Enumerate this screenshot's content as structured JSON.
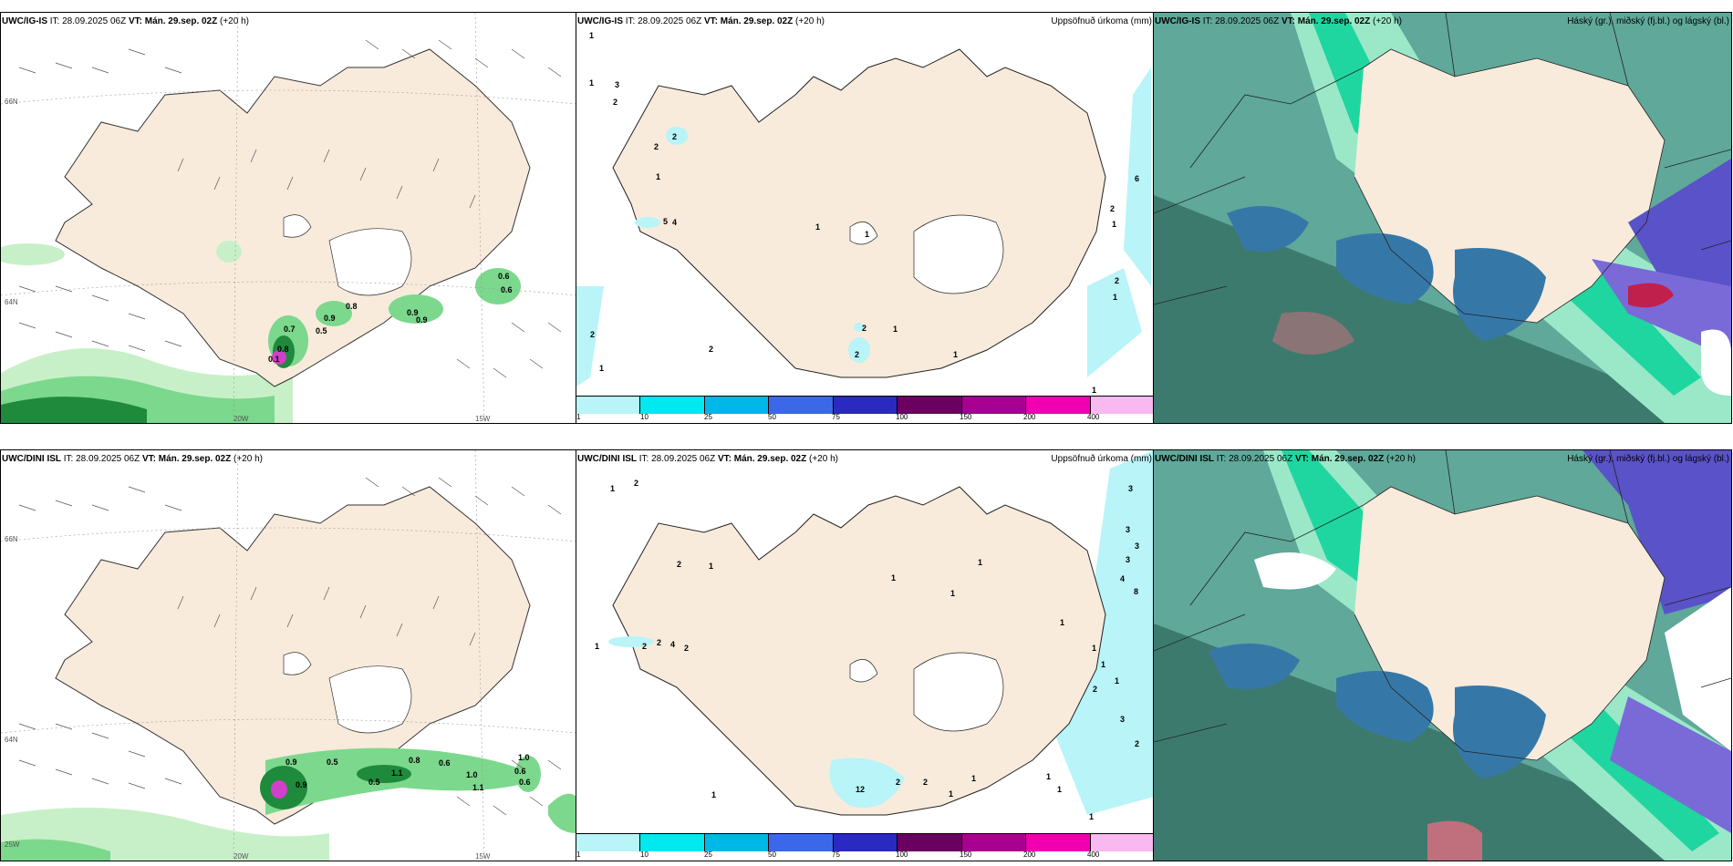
{
  "rows": [
    {
      "model": "UWC/IG-IS",
      "it": "IT: 28.09.2025 06Z",
      "vt_label": "VT:",
      "vt": "Mán. 29.sep. 02Z",
      "lead": "(+20 h)"
    },
    {
      "model": "UWC/DINI ISL",
      "it": "IT: 28.09.2025 06Z",
      "vt_label": "VT:",
      "vt": "Mán. 29.sep. 02Z",
      "lead": "(+20 h)"
    }
  ],
  "precip_title": "Uppsöfnuð úrkoma (mm)",
  "cloud_title": "Háský (gr.), miðský (fj.bl.) og lágský (bl.)",
  "colorbar": {
    "ticks": [
      "1",
      "10",
      "25",
      "50",
      "75",
      "100",
      "150",
      "200",
      "400"
    ],
    "colors": [
      "#b8f4f8",
      "#00e8f0",
      "#00b8e8",
      "#3a68e8",
      "#2a2ac0",
      "#6a0060",
      "#a80090",
      "#f000b0",
      "#f8b8f0"
    ]
  },
  "grid_labels": {
    "n66": "66N",
    "n64": "64N",
    "w20": "20W",
    "w15": "15W",
    "w25": "25W"
  },
  "top_left_values": [
    "0.6",
    "0.6",
    "0.8",
    "0.9",
    "0.9",
    "0.9",
    "0.7",
    "0.5",
    "0.8",
    "0.1"
  ],
  "bottom_left_values": [
    "0.5",
    "0.8",
    "0.6",
    "1.0",
    "1.0",
    "0.6",
    "0.6",
    "0.9",
    "0.5",
    "1.1",
    "1.1",
    "0.9"
  ],
  "top_mid_values": [
    "1",
    "3",
    "1",
    "2",
    "2",
    "1",
    "2",
    "5",
    "4",
    "1",
    "1",
    "1",
    "2",
    "1",
    "6",
    "2",
    "1",
    "2",
    "2",
    "2",
    "1",
    "2",
    "1",
    "1"
  ],
  "bottom_mid_values": [
    "1",
    "2",
    "2",
    "1",
    "1",
    "2",
    "2",
    "4",
    "2",
    "1",
    "1",
    "1",
    "3",
    "3",
    "3",
    "3",
    "4",
    "8",
    "1",
    "1",
    "1",
    "1",
    "2",
    "3",
    "2",
    "12",
    "2",
    "2",
    "1",
    "1",
    "1",
    "1",
    "1",
    "1"
  ],
  "colors": {
    "land": "#f8ebdc",
    "ice": "#ffffff",
    "precip_light": "#b8f4f8",
    "green_light": "#c8f0c8",
    "green_mid": "#7cd88c",
    "green_dark": "#1f8a3c",
    "cloud_teal": "#5fa89a",
    "cloud_dark": "#3d7a6e",
    "cloud_blue": "#3578a8",
    "cloud_bright": "#1fd6a0",
    "cloud_purple": "#5a52c8",
    "cloud_red": "#c0204c"
  }
}
